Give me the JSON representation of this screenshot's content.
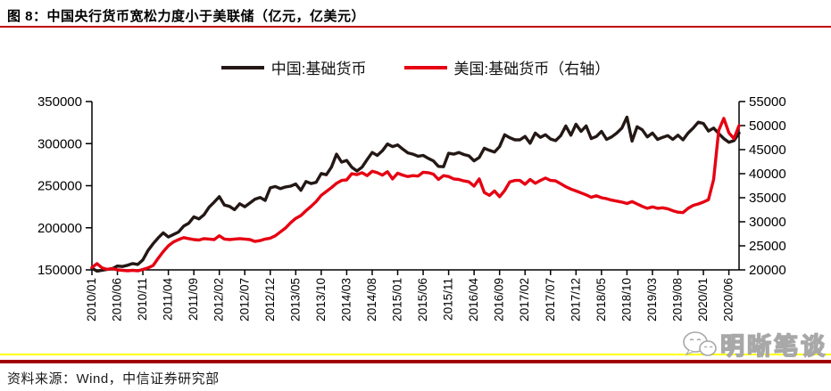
{
  "header": {
    "title": "图 8：中国央行货币宽松力度小于美联储（亿元，亿美元）",
    "underline_color": "#c00000"
  },
  "legend": {
    "items": [
      {
        "label": "中国:基础货币",
        "color": "#231815"
      },
      {
        "label": "美国:基础货币（右轴）",
        "color": "#e60012"
      }
    ]
  },
  "footer": {
    "source": "资料来源：Wind，中信证券研究部",
    "watermark": "明晰笔谈",
    "rule_colors": {
      "yellow": "#ffff00",
      "red": "#a00000"
    }
  },
  "chart_data": {
    "type": "line",
    "title": "中国央行货币宽松力度小于美联储（亿元，亿美元）",
    "frequency": "monthly",
    "x_start": "2010/01",
    "x_end": "2020/08",
    "x_tick_every_months": 5,
    "x_tick_labels": [
      "2010/01",
      "2010/06",
      "2010/11",
      "2011/04",
      "2011/09",
      "2012/02",
      "2012/07",
      "2012/12",
      "2013/05",
      "2013/10",
      "2014/03",
      "2014/08",
      "2015/01",
      "2015/06",
      "2015/11",
      "2016/04",
      "2016/09",
      "2017/02",
      "2017/07",
      "2017/12",
      "2018/05",
      "2018/10",
      "2019/03",
      "2019/08",
      "2020/01",
      "2020/06"
    ],
    "grid": false,
    "legend_position": "top-center",
    "left_axis": {
      "min": 150000,
      "max": 350000,
      "ticks": [
        150000,
        200000,
        250000,
        300000,
        350000
      ]
    },
    "right_axis": {
      "min": 20000,
      "max": 55000,
      "ticks": [
        20000,
        25000,
        30000,
        35000,
        40000,
        45000,
        50000,
        55000
      ]
    },
    "series": [
      {
        "name": "中国:基础货币",
        "axis": "left",
        "unit": "亿元",
        "color": "#231815",
        "values": [
          152000,
          148500,
          149500,
          150500,
          151500,
          154500,
          154000,
          155500,
          157500,
          156500,
          162000,
          173000,
          181000,
          188000,
          194000,
          189000,
          192000,
          195000,
          202000,
          205500,
          213000,
          210500,
          215500,
          224500,
          230500,
          237000,
          227000,
          225500,
          221500,
          228500,
          225000,
          229500,
          234000,
          236000,
          232500,
          247500,
          249000,
          246500,
          248500,
          249500,
          252000,
          244500,
          255000,
          252500,
          254000,
          264500,
          263000,
          272000,
          287500,
          278000,
          280000,
          272000,
          267500,
          272000,
          281000,
          289500,
          286000,
          291500,
          299500,
          296500,
          298500,
          293500,
          289000,
          287500,
          285000,
          286000,
          282500,
          279500,
          273000,
          272500,
          288500,
          287500,
          289500,
          287000,
          285500,
          279500,
          283500,
          294500,
          292000,
          290000,
          296500,
          310500,
          307000,
          304500,
          304500,
          308500,
          300500,
          312500,
          307500,
          310500,
          305500,
          303500,
          309500,
          321000,
          310000,
          323000,
          314500,
          321000,
          306000,
          308500,
          314500,
          305000,
          308000,
          312500,
          318500,
          331500,
          303000,
          320000,
          316500,
          308000,
          312500,
          305000,
          307500,
          309500,
          305000,
          310000,
          304500,
          312500,
          318500,
          325500,
          324000,
          315000,
          318500,
          312000,
          306000,
          301500,
          303500,
          312500
        ]
      },
      {
        "name": "美国:基础货币（右轴）",
        "axis": "right",
        "unit": "亿美元",
        "color": "#e60012",
        "values": [
          20500,
          21300,
          20400,
          20100,
          20300,
          20000,
          19900,
          19800,
          19900,
          19800,
          20100,
          20400,
          20900,
          22400,
          23800,
          25000,
          25800,
          26300,
          26700,
          26500,
          26300,
          26200,
          26500,
          26400,
          26300,
          27100,
          26400,
          26300,
          26400,
          26500,
          26400,
          26300,
          25900,
          26100,
          26400,
          26600,
          27100,
          27900,
          28700,
          29800,
          30700,
          31300,
          32300,
          33200,
          34200,
          35500,
          36300,
          37100,
          38000,
          38600,
          38700,
          40000,
          39800,
          40200,
          39600,
          40500,
          40200,
          39700,
          40400,
          38900,
          40100,
          39700,
          39400,
          39600,
          39500,
          40300,
          40200,
          39900,
          38800,
          39600,
          39400,
          38900,
          38800,
          38500,
          38300,
          37400,
          38900,
          36100,
          35500,
          36400,
          35200,
          36500,
          38300,
          38600,
          38600,
          37800,
          38800,
          38000,
          38600,
          39100,
          38600,
          38500,
          37900,
          37300,
          36800,
          36400,
          36000,
          35600,
          35100,
          35400,
          35000,
          34800,
          34500,
          34300,
          34100,
          33800,
          34200,
          33700,
          33200,
          32800,
          33100,
          32800,
          32900,
          32700,
          32300,
          32000,
          31900,
          32800,
          33400,
          33700,
          34100,
          34600,
          38800,
          49000,
          51500,
          48500,
          47300,
          50000
        ]
      }
    ]
  }
}
